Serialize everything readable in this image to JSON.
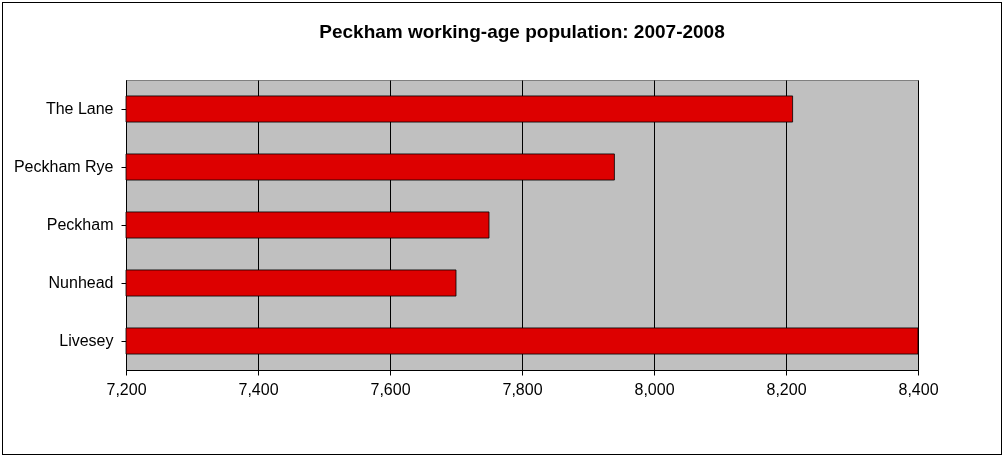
{
  "chart_data": {
    "type": "bar",
    "orientation": "horizontal",
    "title": "Peckham working-age population: 2007-2008",
    "categories": [
      "The Lane",
      "Peckham Rye",
      "Peckham",
      "Nunhead",
      "Livesey"
    ],
    "values": [
      8210,
      7940,
      7750,
      7700,
      8400
    ],
    "color": "#dd0000",
    "xlim": [
      7200,
      8400
    ],
    "xticks": [
      {
        "value": 7200,
        "label": "7,200"
      },
      {
        "value": 7400,
        "label": "7,400"
      },
      {
        "value": 7600,
        "label": "7,600"
      },
      {
        "value": 7800,
        "label": "7,800"
      },
      {
        "value": 8000,
        "label": "8,000"
      },
      {
        "value": 8200,
        "label": "8,200"
      },
      {
        "value": 8400,
        "label": "8,400"
      }
    ],
    "grid": "x"
  }
}
